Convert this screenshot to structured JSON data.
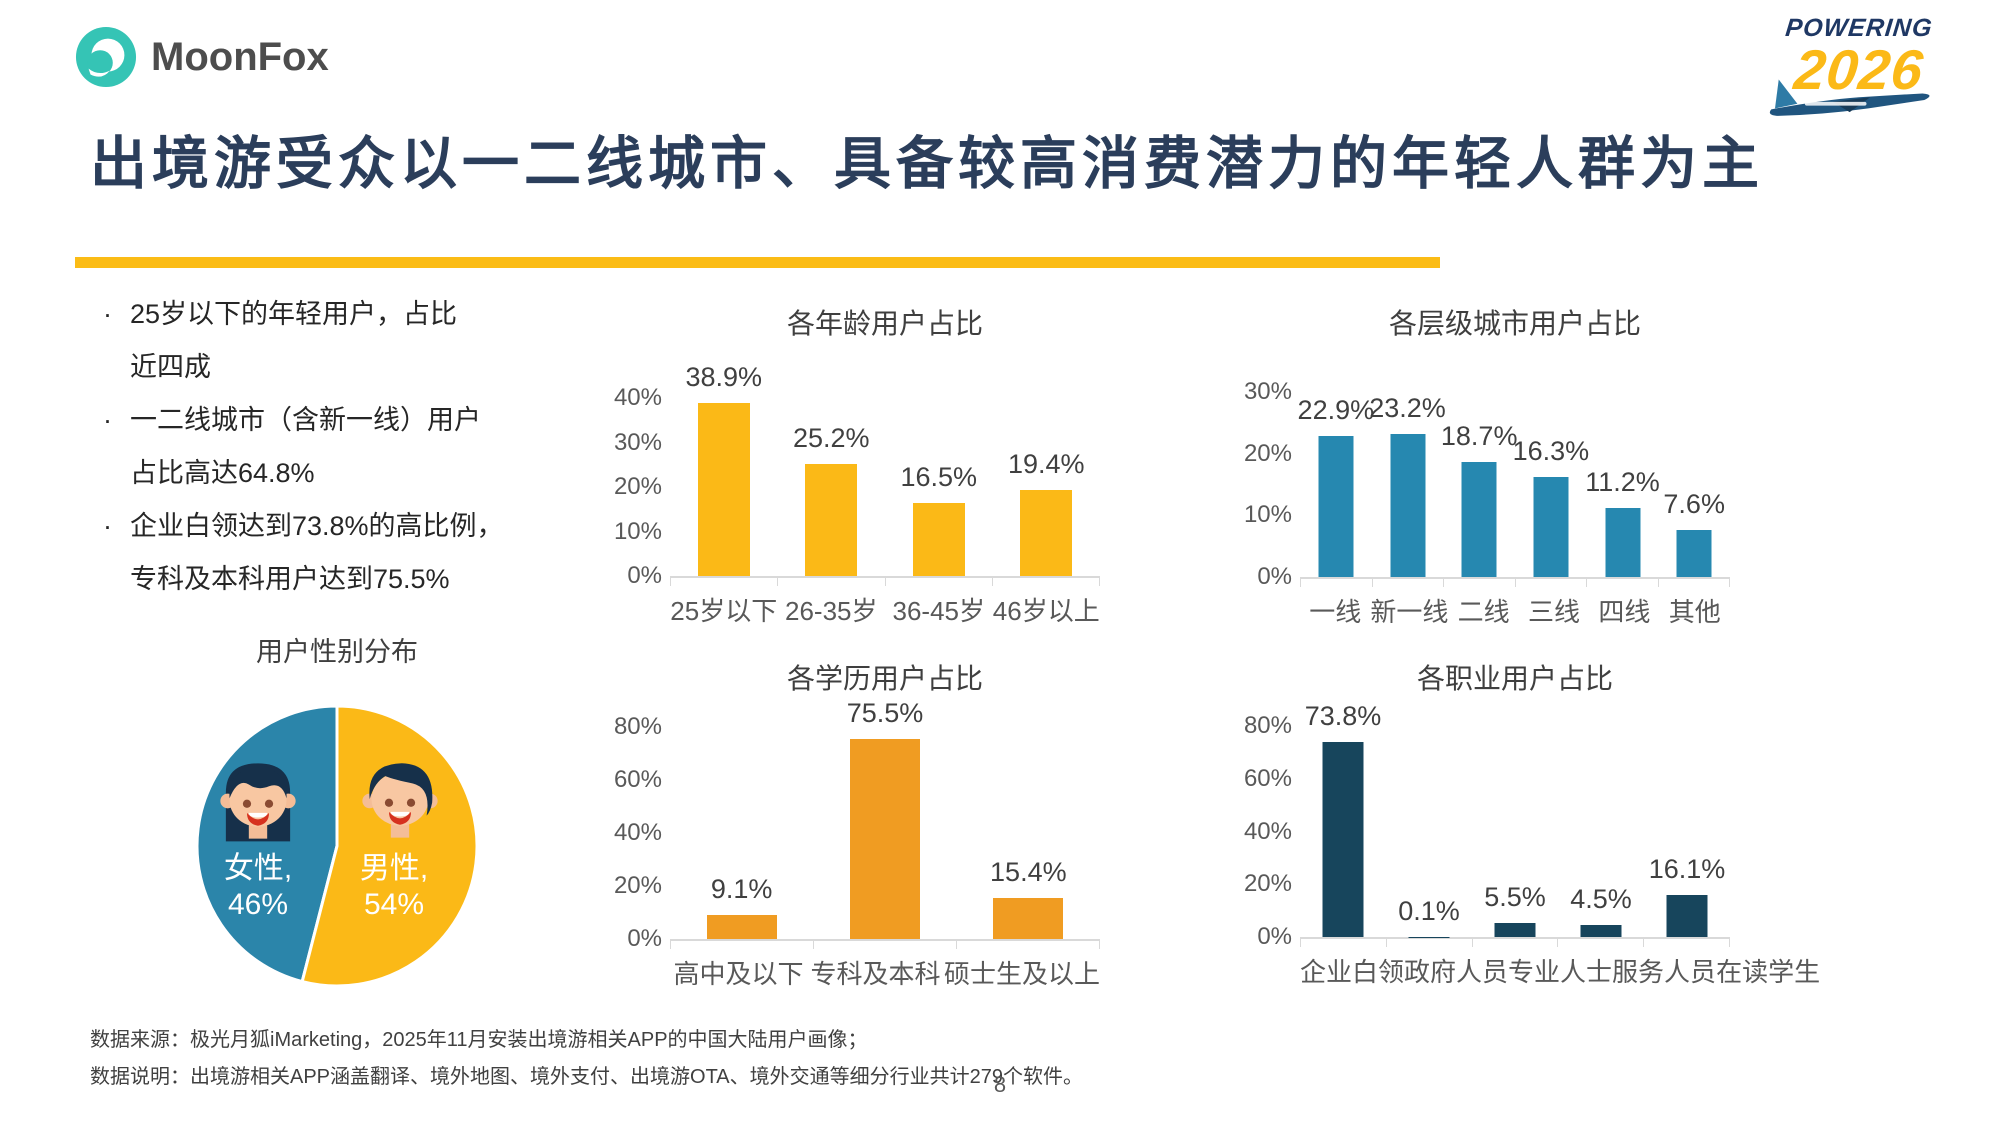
{
  "brand": {
    "name": "MoonFox"
  },
  "event_badge": {
    "top": "POWERING",
    "year": "2026"
  },
  "page": {
    "title": "出境游受众以一二线城市、具备较高消费潜力的年轻人群为主",
    "number": "8"
  },
  "bullets": {
    "marker": "·",
    "items": [
      {
        "lines": [
          "25岁以下的年轻用户，占比",
          "近四成"
        ]
      },
      {
        "lines": [
          "一二线城市（含新一线）用户",
          "占比高达64.8%"
        ]
      },
      {
        "lines": [
          "企业白领达到73.8%的高比例，",
          "专科及本科用户达到75.5%"
        ]
      }
    ]
  },
  "footer": {
    "source": "数据来源：极光月狐iMarketing，2025年11月安装出境游相关APP的中国大陆用户画像；",
    "note": "数据说明：出境游相关APP涵盖翻译、境外地图、境外支付、出境游OTA、境外交通等细分行业共计279个软件。"
  },
  "colors": {
    "title_navy": "#2b3e5b",
    "underline_yellow": "#fbbc16",
    "bar_yellow": "#fbb917",
    "bar_blue": "#2688b0",
    "bar_orange": "#f09c22",
    "bar_dark_navy": "#17455c",
    "pie_female_blue": "#2b85aa",
    "pie_male_yellow": "#fbb917",
    "brand_teal": "#35c4b5"
  },
  "chart_data": [
    {
      "id": "gender",
      "type": "pie",
      "title": "用户性别分布",
      "rotation_deg": 194.4,
      "legend_position": "inside",
      "slices": [
        {
          "label": "女性",
          "value": 46,
          "display": [
            "女性,",
            "46%"
          ],
          "color": "#2b85aa",
          "icon": "female-face-icon"
        },
        {
          "label": "男性",
          "value": 54,
          "display": [
            "男性,",
            "54%"
          ],
          "color": "#fbb917",
          "icon": "male-face-icon"
        }
      ]
    },
    {
      "id": "age",
      "type": "bar",
      "title": "各年龄用户占比",
      "categories": [
        "25岁以下",
        "26-35岁",
        "36-45岁",
        "46岁以上"
      ],
      "values": [
        38.9,
        25.2,
        16.5,
        19.4
      ],
      "value_labels": [
        "38.9%",
        "25.2%",
        "16.5%",
        "19.4%"
      ],
      "bar_color": "#fbb917",
      "ylim": [
        0,
        40
      ],
      "yticks": [
        "0%",
        "10%",
        "20%",
        "30%",
        "40%"
      ],
      "grid": false
    },
    {
      "id": "city",
      "type": "bar",
      "title": "各层级城市用户占比",
      "categories": [
        "一线",
        "新一线",
        "二线",
        "三线",
        "四线",
        "其他"
      ],
      "values": [
        22.9,
        23.2,
        18.7,
        16.3,
        11.2,
        7.6
      ],
      "value_labels": [
        "22.9%",
        "23.2%",
        "18.7%",
        "16.3%",
        "11.2%",
        "7.6%"
      ],
      "bar_color": "#2688b0",
      "ylim": [
        0,
        30
      ],
      "yticks": [
        "0%",
        "10%",
        "20%",
        "30%"
      ],
      "grid": false
    },
    {
      "id": "edu",
      "type": "bar",
      "title": "各学历用户占比",
      "categories": [
        "高中及以下",
        "专科及本科",
        "硕士生及以上"
      ],
      "values": [
        9.1,
        75.5,
        15.4
      ],
      "value_labels": [
        "9.1%",
        "75.5%",
        "15.4%"
      ],
      "bar_color": "#f09c22",
      "ylim": [
        0,
        80
      ],
      "yticks": [
        "0%",
        "20%",
        "40%",
        "60%",
        "80%"
      ],
      "grid": false
    },
    {
      "id": "occ",
      "type": "bar",
      "title": "各职业用户占比",
      "categories": [
        "企业白领",
        "政府人员",
        "专业人士",
        "服务人员",
        "在读学生"
      ],
      "values": [
        73.8,
        0.1,
        5.5,
        4.5,
        16.1
      ],
      "value_labels": [
        "73.8%",
        "0.1%",
        "5.5%",
        "4.5%",
        "16.1%"
      ],
      "bar_color": "#17455c",
      "ylim": [
        0,
        80
      ],
      "yticks": [
        "0%",
        "20%",
        "40%",
        "60%",
        "80%"
      ],
      "grid": false
    }
  ]
}
